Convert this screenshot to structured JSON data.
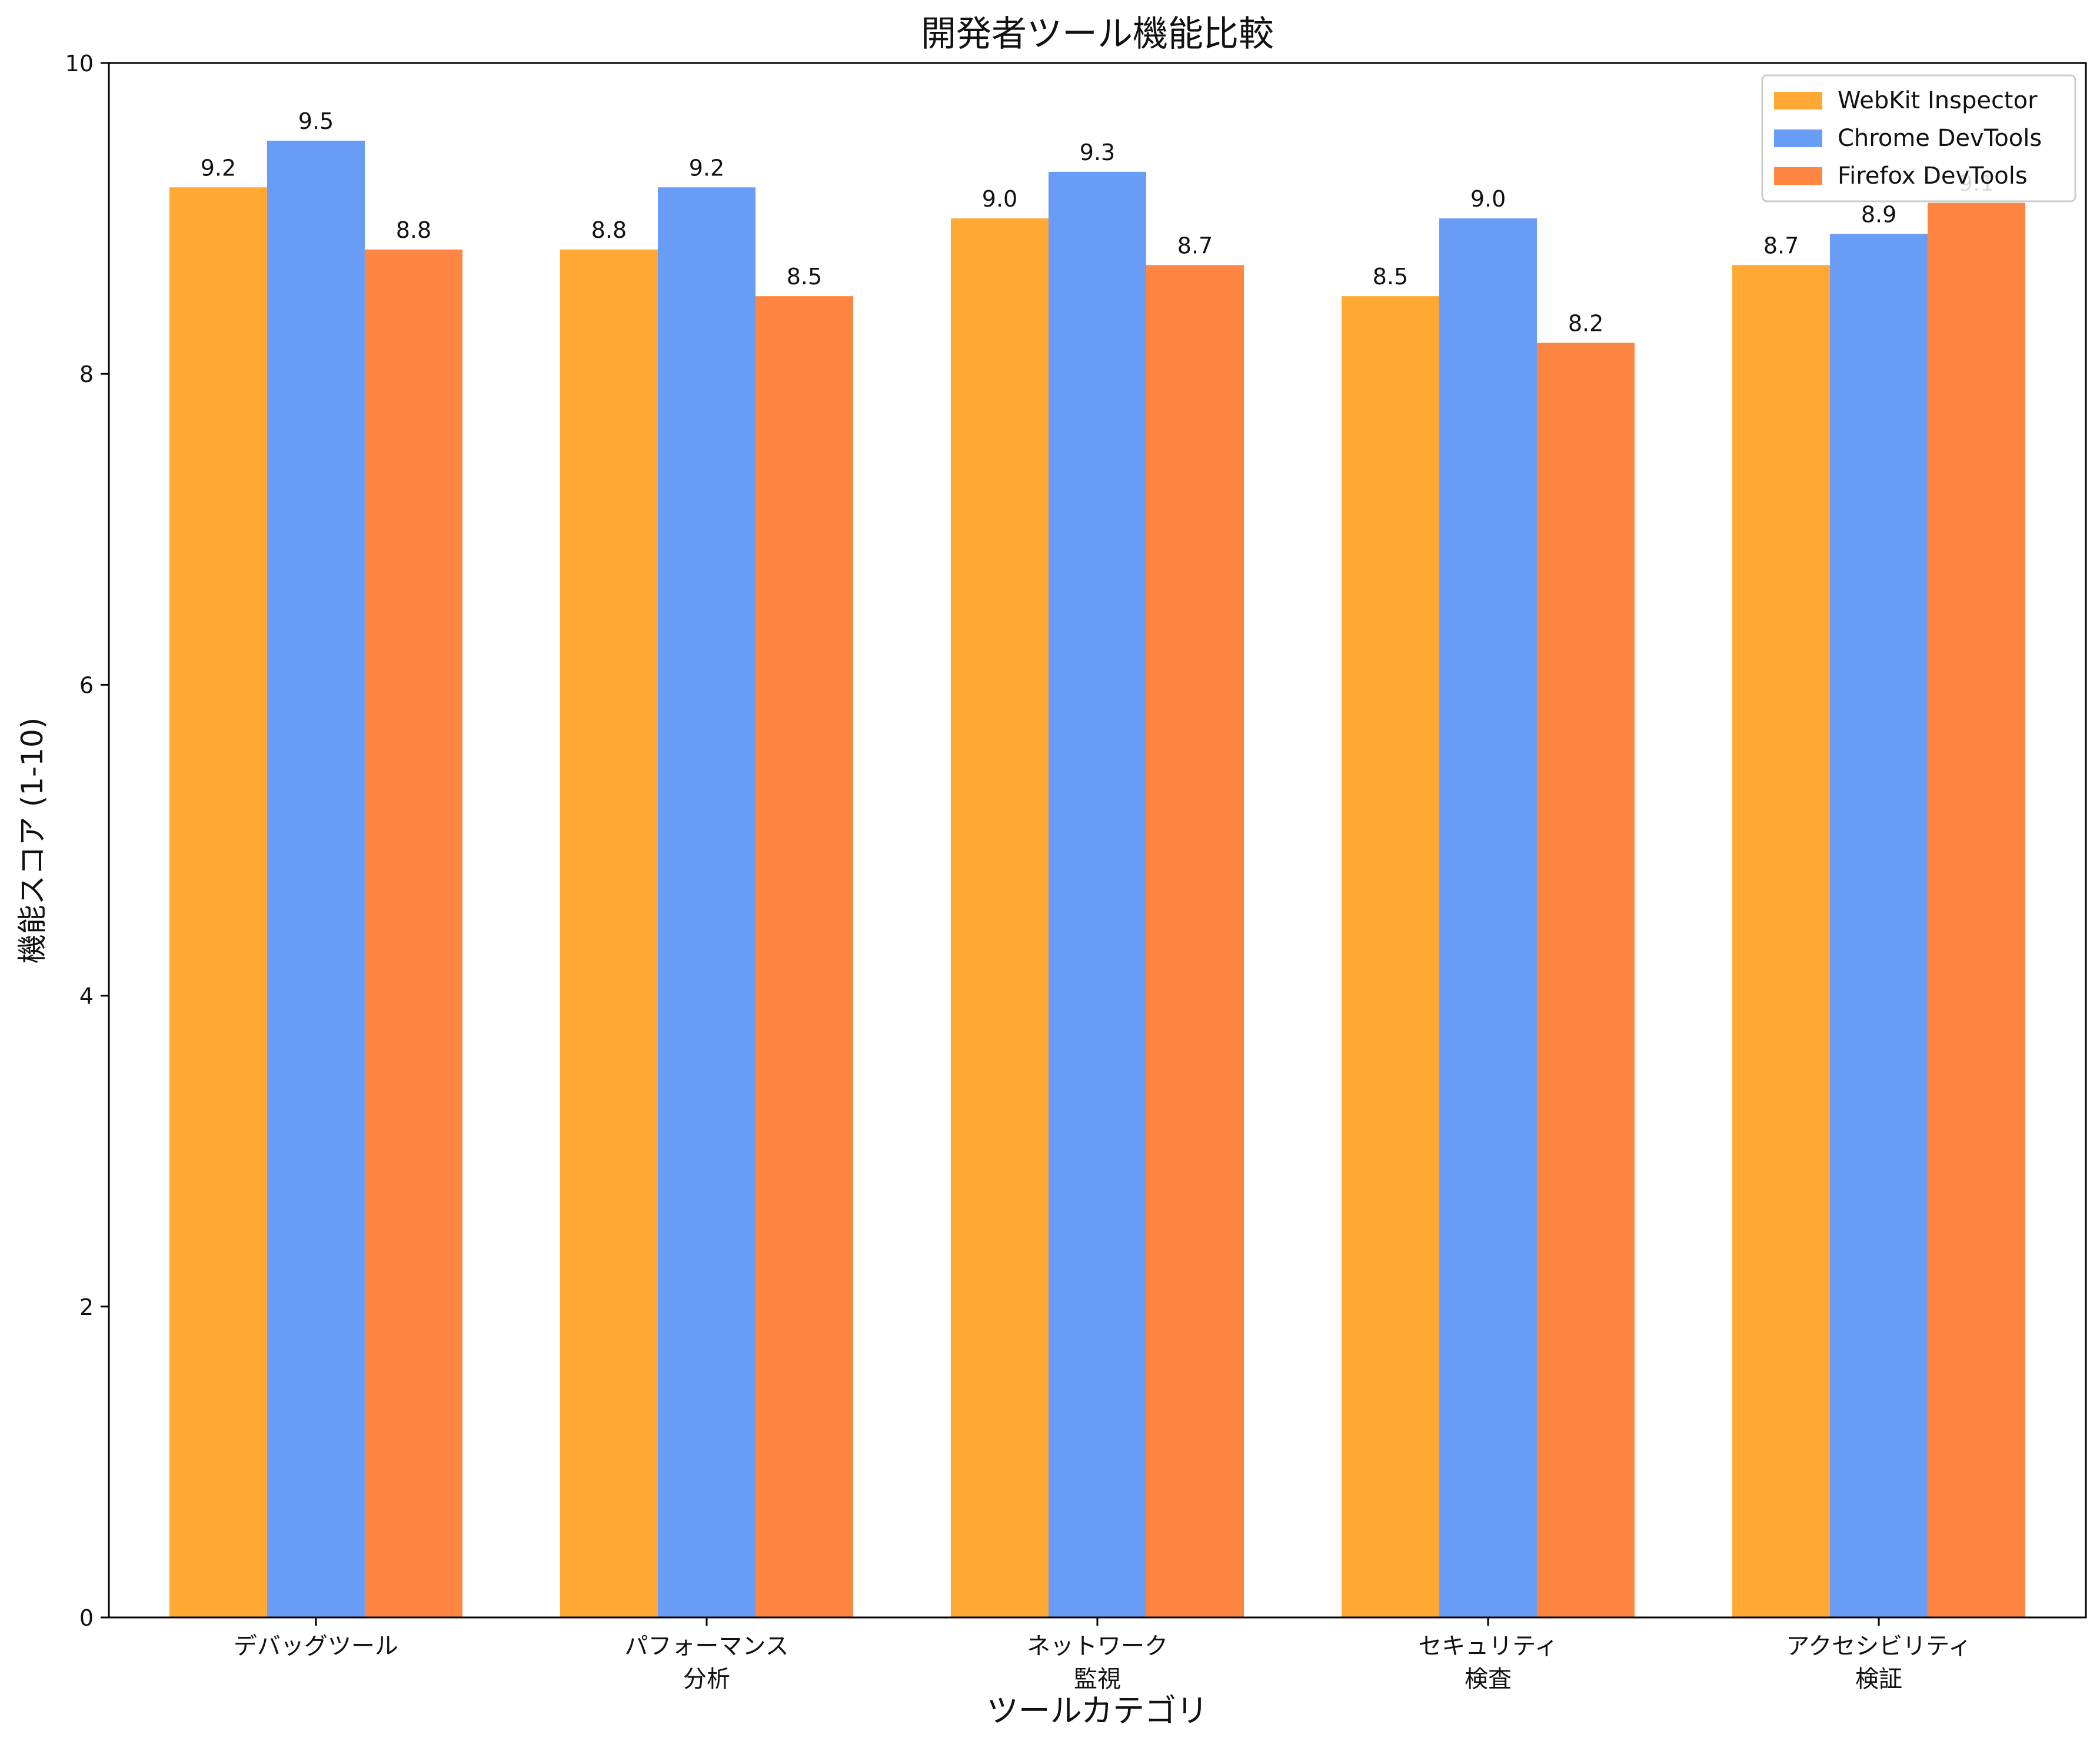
{
  "chart_data": {
    "type": "bar",
    "title": "開発者ツール機能比較",
    "xlabel": "ツールカテゴリ",
    "ylabel": "機能スコア (1-10)",
    "ylim": [
      0,
      10
    ],
    "yticks": [
      0,
      2,
      4,
      6,
      8,
      10
    ],
    "categories": [
      [
        "デバッグツール"
      ],
      [
        "パフォーマンス",
        "分析"
      ],
      [
        "ネットワーク",
        "監視"
      ],
      [
        "セキュリティ",
        "検査"
      ],
      [
        "アクセシビリティ",
        "検証"
      ]
    ],
    "series": [
      {
        "name": "WebKit Inspector",
        "color": "#ffa833",
        "values": [
          9.2,
          8.8,
          9.0,
          8.5,
          8.7
        ]
      },
      {
        "name": "Chrome DevTools",
        "color": "#699cf4",
        "values": [
          9.5,
          9.2,
          9.3,
          9.0,
          8.9
        ]
      },
      {
        "name": "Firefox DevTools",
        "color": "#ff8642",
        "values": [
          8.8,
          8.5,
          8.7,
          8.2,
          9.1
        ]
      }
    ],
    "legend_position": "top-right",
    "grid": false
  }
}
